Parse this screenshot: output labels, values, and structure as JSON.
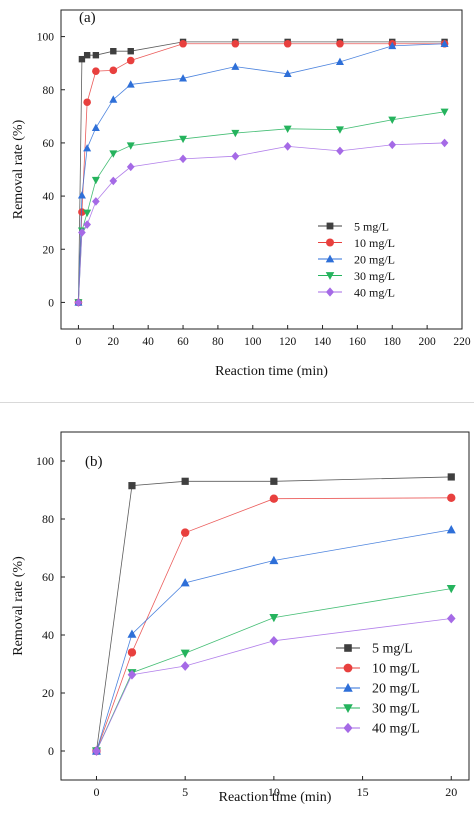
{
  "chart_data": [
    {
      "panel_label": "(a)",
      "type": "line",
      "xlabel": "Reaction time (min)",
      "ylabel": "Removal rate (%)",
      "xlim": [
        -10,
        220
      ],
      "ylim": [
        -10,
        110
      ],
      "xticks": [
        "0",
        "20",
        "40",
        "60",
        "80",
        "100",
        "120",
        "140",
        "160",
        "180",
        "200",
        "220"
      ],
      "yticks": [
        "0",
        "20",
        "40",
        "60",
        "80",
        "100"
      ],
      "legend_position": "right-middle",
      "grid": false,
      "x": [
        0,
        2,
        5,
        10,
        20,
        30,
        60,
        90,
        120,
        150,
        180,
        210
      ],
      "series": [
        {
          "name": "5 mg/L",
          "marker": "square",
          "color": "#3f3f3f",
          "values": [
            0,
            91.5,
            93,
            93,
            94.5,
            94.5,
            98,
            98,
            98,
            98,
            98,
            98
          ]
        },
        {
          "name": "10 mg/L",
          "marker": "circle",
          "color": "#e8403e",
          "values": [
            0,
            34,
            75.3,
            87,
            87.3,
            91,
            97.3,
            97.3,
            97.3,
            97.3,
            97.3,
            97.3
          ]
        },
        {
          "name": "20 mg/L",
          "marker": "triangle-up",
          "color": "#2e6fd8",
          "values": [
            0,
            40.3,
            58,
            65.7,
            76.3,
            82,
            84.3,
            88.7,
            86,
            90.5,
            96.5,
            97.3
          ]
        },
        {
          "name": "30 mg/L",
          "marker": "triangle-down",
          "color": "#25b35d",
          "values": [
            0,
            27,
            33.7,
            46,
            56,
            59,
            61.5,
            63.7,
            65.3,
            65,
            68.7,
            71.7
          ]
        },
        {
          "name": "40 mg/L",
          "marker": "diamond",
          "color": "#a56ae6",
          "values": [
            0,
            26.3,
            29.3,
            38,
            45.7,
            51,
            54,
            55,
            58.7,
            57,
            59.3,
            60
          ]
        }
      ]
    },
    {
      "panel_label": "(b)",
      "type": "line",
      "xlabel": "Reaction time (min)",
      "ylabel": "Removal rate (%)",
      "xlim": [
        -2,
        21
      ],
      "ylim": [
        -10,
        110
      ],
      "xticks": [
        "0",
        "5",
        "10",
        "15",
        "20"
      ],
      "yticks": [
        "0",
        "20",
        "40",
        "60",
        "80",
        "100"
      ],
      "legend_position": "bottom-right",
      "grid": false,
      "x": [
        0,
        2,
        5,
        10,
        20
      ],
      "series": [
        {
          "name": "5 mg/L",
          "marker": "square",
          "color": "#3f3f3f",
          "values": [
            0,
            91.5,
            93,
            93,
            94.5
          ]
        },
        {
          "name": "10 mg/L",
          "marker": "circle",
          "color": "#e8403e",
          "values": [
            0,
            34,
            75.3,
            87,
            87.3
          ]
        },
        {
          "name": "20 mg/L",
          "marker": "triangle-up",
          "color": "#2e6fd8",
          "values": [
            0,
            40.3,
            58,
            65.7,
            76.3
          ]
        },
        {
          "name": "30 mg/L",
          "marker": "triangle-down",
          "color": "#25b35d",
          "values": [
            0,
            27,
            33.7,
            46,
            56
          ]
        },
        {
          "name": "40 mg/L",
          "marker": "diamond",
          "color": "#a56ae6",
          "values": [
            0,
            26.3,
            29.3,
            38,
            45.7
          ]
        }
      ]
    }
  ]
}
